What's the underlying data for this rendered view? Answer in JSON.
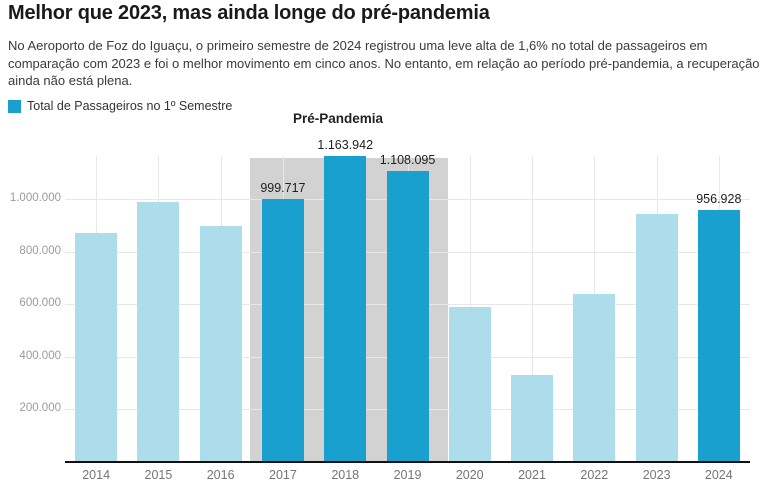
{
  "header": {
    "title": "Melhor que 2023, mas ainda longe do pré-pandemia",
    "description": "No Aeroporto de Foz do Iguaçu, o primeiro semestre de 2024 registrou uma leve alta de 1,6% no total de passageiros em comparação com 2023 e foi o melhor movimento em cinco anos. No entanto, em relação ao período pré-pandemia, a recuperação ainda não está plena."
  },
  "legend": {
    "label": "Total de Passageiros no 1º Semestre"
  },
  "annotation": {
    "label": "Pré-Pandemia"
  },
  "colors": {
    "bar_default": "#addceb",
    "bar_highlight": "#1aa0ce",
    "band": "#d2d2d2",
    "gridline": "#e7e7e7",
    "axis_line": "#111111",
    "tick_label": "#9b9b9b",
    "x_label": "#757575",
    "value_label": "#1f1f1f"
  },
  "chart_data": {
    "type": "bar",
    "title": "Total de Passageiros no 1º Semestre",
    "categories": [
      "2014",
      "2015",
      "2016",
      "2017",
      "2018",
      "2019",
      "2020",
      "2021",
      "2022",
      "2023",
      "2024"
    ],
    "values": [
      870000,
      990000,
      898000,
      999717,
      1163942,
      1108095,
      588000,
      332000,
      640000,
      942000,
      956928
    ],
    "value_labels": [
      "",
      "",
      "",
      "999.717",
      "1.163.942",
      "1.108.095",
      "",
      "",
      "",
      "",
      "956.928"
    ],
    "highlighted": [
      false,
      false,
      false,
      true,
      true,
      true,
      false,
      false,
      false,
      false,
      true
    ],
    "highlight_band": {
      "label": "Pré-Pandemia",
      "from": "2017",
      "to": "2019"
    },
    "y_ticks": [
      {
        "value": 200000,
        "label": "200.000"
      },
      {
        "value": 400000,
        "label": "400.000"
      },
      {
        "value": 600000,
        "label": "600.000"
      },
      {
        "value": 800000,
        "label": "800.000"
      },
      {
        "value": 1000000,
        "label": "1.000.000"
      }
    ],
    "ylim": [
      0,
      1163942
    ],
    "grid": true,
    "legend_position": "top-left",
    "xlabel": "",
    "ylabel": ""
  }
}
